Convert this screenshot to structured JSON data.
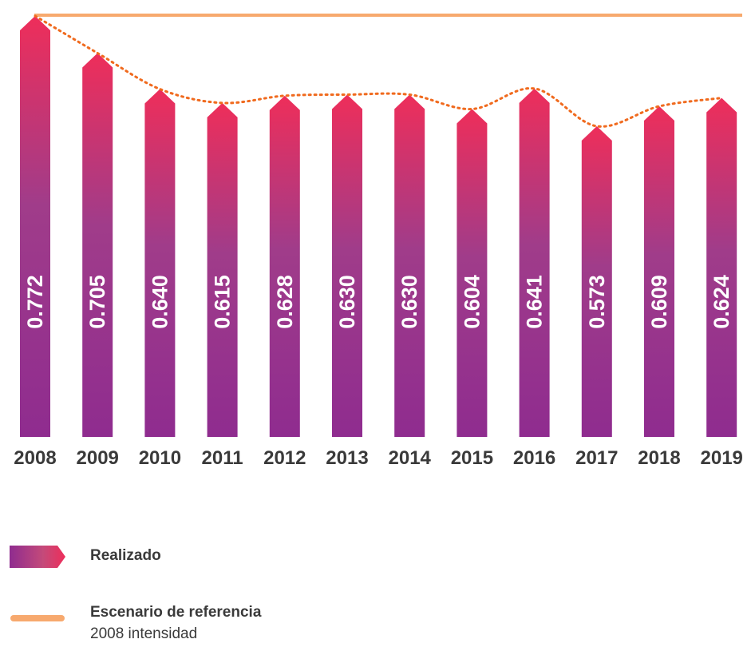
{
  "chart_data": {
    "type": "bar",
    "categories": [
      "2008",
      "2009",
      "2010",
      "2011",
      "2012",
      "2013",
      "2014",
      "2015",
      "2016",
      "2017",
      "2018",
      "2019"
    ],
    "series": [
      {
        "name": "Realizado",
        "values": [
          0.772,
          0.705,
          0.64,
          0.615,
          0.628,
          0.63,
          0.63,
          0.604,
          0.641,
          0.573,
          0.609,
          0.624
        ]
      }
    ],
    "reference_line": {
      "name": "Escenario de referencia",
      "value": 0.772
    },
    "value_labels": [
      "0.772",
      "0.705",
      "0.640",
      "0.615",
      "0.628",
      "0.630",
      "0.630",
      "0.604",
      "0.641",
      "0.573",
      "0.609",
      "0.624"
    ],
    "colors": {
      "bar_top": "#ee2e5a",
      "bar_bottom": "#8f2c8f",
      "reference": "#f7a96e",
      "trend": "#f06a1e",
      "text": "#3a3a3a"
    }
  },
  "legend": {
    "realized_label": "Realizado",
    "reference_label": "Escenario de referencia",
    "reference_sub": "2008 intensidad"
  }
}
